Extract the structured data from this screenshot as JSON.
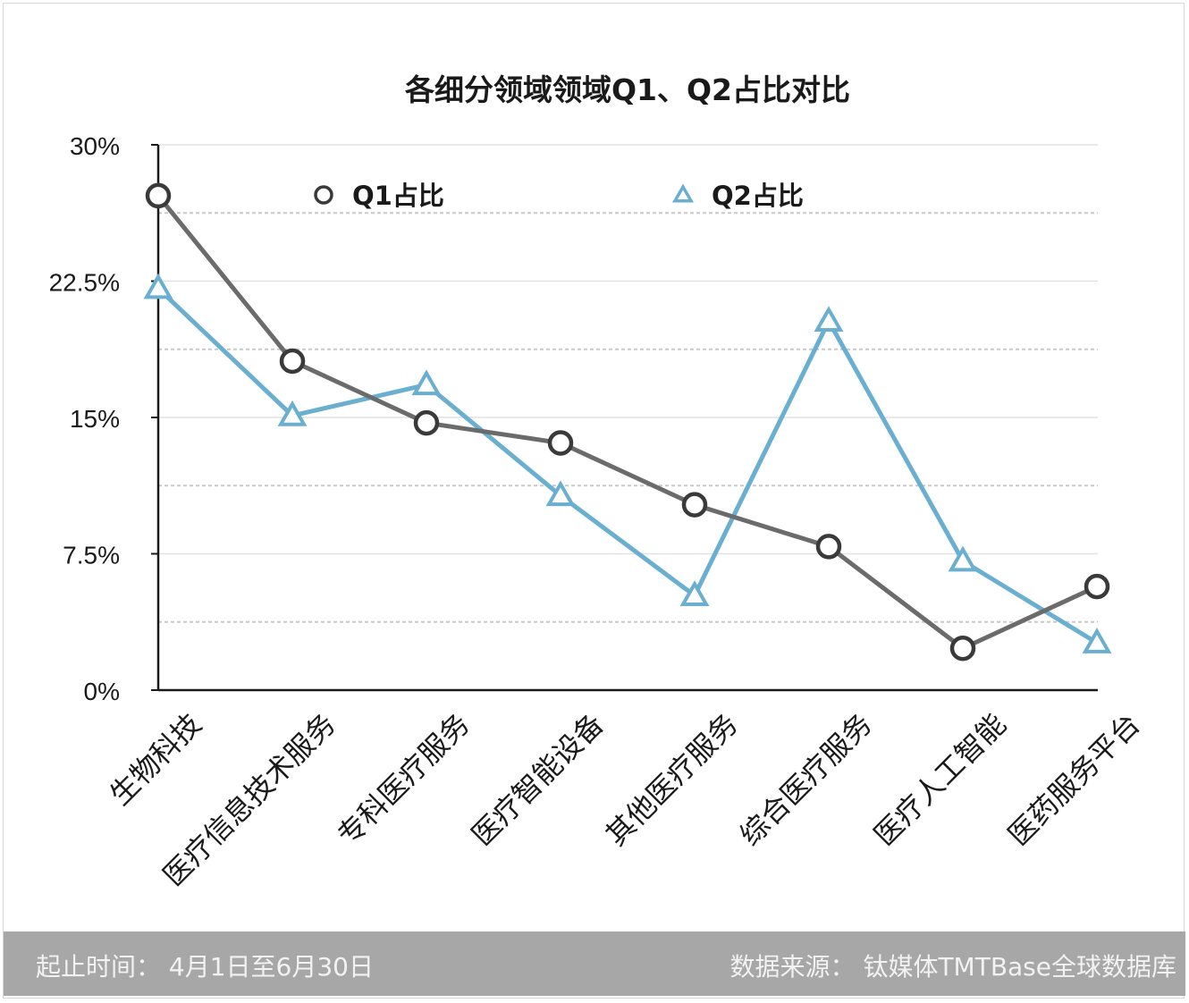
{
  "chart_data": {
    "type": "line",
    "title": "各细分领域领域Q1、Q2占比对比",
    "xlabel": "",
    "ylabel": "",
    "categories": [
      "生物科技",
      "医疗信息技术服务",
      "专科医疗服务",
      "医疗智能设备",
      "其他医疗服务",
      "综合医疗服务",
      "医疗人工智能",
      "医药服务平台"
    ],
    "yticks": [
      "0%",
      "7.5%",
      "15%",
      "22.5%",
      "30%"
    ],
    "ylim": [
      0,
      30
    ],
    "grid": true,
    "legend_position": "top",
    "series": [
      {
        "name": "Q1占比",
        "marker": "circle",
        "color": "#6b6b6b",
        "values": [
          27.2,
          18.1,
          14.7,
          13.6,
          10.2,
          7.9,
          2.3,
          5.7
        ]
      },
      {
        "name": "Q2占比",
        "marker": "triangle",
        "color": "#6aaed0",
        "values": [
          22.1,
          15.1,
          16.8,
          10.7,
          5.2,
          20.3,
          7.1,
          2.6
        ]
      }
    ]
  },
  "footer": {
    "period": "起止时间：  4月1日至6月30日",
    "source": "数据来源：  钛媒体TMTBase全球数据库"
  },
  "colors": {
    "axis": "#1a1a1a",
    "grid_solid": "#e2e2e2",
    "grid_dashed": "#c9c9c9",
    "footer_bg": "#a7a7a7"
  }
}
